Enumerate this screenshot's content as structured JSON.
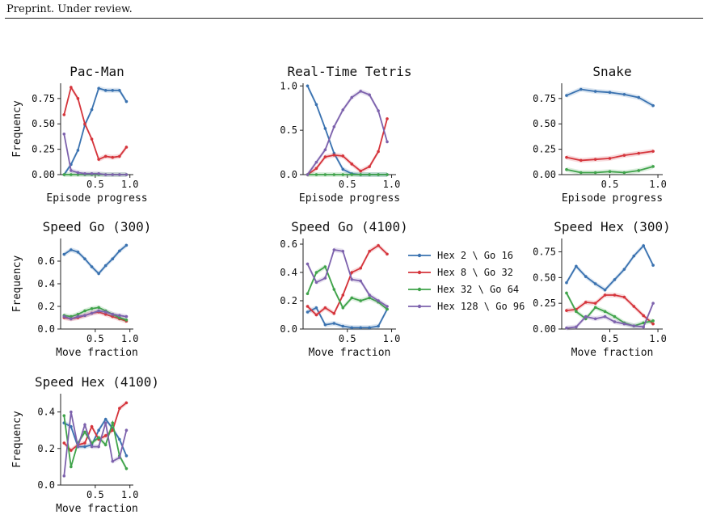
{
  "header": {
    "text": "Preprint. Under review."
  },
  "colors": {
    "blue": "#3a72b0",
    "red": "#d5343b",
    "green": "#3fa34a",
    "purple": "#7d62ad"
  },
  "legend": {
    "placement": "right-of-center-panel",
    "entries": [
      {
        "label": "Hex 2 \\ Go 16",
        "color": "#3a72b0"
      },
      {
        "label": "Hex 8 \\ Go 32",
        "color": "#d5343b"
      },
      {
        "label": "Hex 32 \\ Go 64",
        "color": "#3fa34a"
      },
      {
        "label": "Hex 128 \\ Go 96",
        "color": "#7d62ad"
      }
    ]
  },
  "chart_data": [
    {
      "type": "line",
      "title": "Pac-Man",
      "xlabel": "Episode progress",
      "ylabel": "Frequency",
      "xlim": [
        0,
        1.05
      ],
      "ylim": [
        0,
        0.9
      ],
      "xticks": [
        0.5,
        1.0
      ],
      "xtick_labels": [
        "0.5",
        "1.0"
      ],
      "yticks": [
        0,
        0.25,
        0.5,
        0.75
      ],
      "ytick_labels": [
        "0.00",
        "0.25",
        "0.50",
        "0.75"
      ],
      "series": [
        {
          "color": "#3a72b0",
          "x": [
            0.05,
            0.15,
            0.25,
            0.35,
            0.45,
            0.55,
            0.65,
            0.75,
            0.85,
            0.95
          ],
          "y": [
            0.0,
            0.1,
            0.24,
            0.49,
            0.64,
            0.85,
            0.83,
            0.83,
            0.83,
            0.72
          ]
        },
        {
          "color": "#d5343b",
          "x": [
            0.05,
            0.15,
            0.25,
            0.35,
            0.45,
            0.55,
            0.65,
            0.75,
            0.85,
            0.95
          ],
          "y": [
            0.59,
            0.86,
            0.75,
            0.5,
            0.35,
            0.15,
            0.18,
            0.17,
            0.18,
            0.27
          ]
        },
        {
          "color": "#3fa34a",
          "x": [
            0.05,
            0.15,
            0.25,
            0.35,
            0.45,
            0.55,
            0.65,
            0.75,
            0.85,
            0.95
          ],
          "y": [
            0.0,
            0.0,
            0.0,
            0.0,
            0.0,
            0.0,
            0.0,
            0.0,
            0.0,
            0.0
          ]
        },
        {
          "color": "#7d62ad",
          "x": [
            0.05,
            0.15,
            0.25,
            0.35,
            0.45,
            0.55,
            0.65,
            0.75,
            0.85,
            0.95
          ],
          "y": [
            0.4,
            0.04,
            0.02,
            0.01,
            0.01,
            0.01,
            0.0,
            0.0,
            0.0,
            0.0
          ]
        }
      ]
    },
    {
      "type": "line",
      "title": "Real-Time Tetris",
      "xlabel": "Episode progress",
      "ylabel": "",
      "xlim": [
        0,
        1.05
      ],
      "ylim": [
        0,
        1.03
      ],
      "xticks": [
        0.5,
        1.0
      ],
      "xtick_labels": [
        "0.5",
        "1.0"
      ],
      "yticks": [
        0,
        0.5,
        1.0
      ],
      "ytick_labels": [
        "0.0",
        "0.5",
        "1.0"
      ],
      "series": [
        {
          "color": "#3a72b0",
          "x": [
            0.05,
            0.15,
            0.25,
            0.35,
            0.45,
            0.55,
            0.65,
            0.75,
            0.85,
            0.95
          ],
          "y": [
            1.0,
            0.79,
            0.52,
            0.24,
            0.06,
            0.01,
            0.0,
            0.0,
            0.0,
            0.0
          ]
        },
        {
          "color": "#d5343b",
          "x": [
            0.05,
            0.15,
            0.25,
            0.35,
            0.45,
            0.55,
            0.65,
            0.75,
            0.85,
            0.95
          ],
          "y": [
            0.0,
            0.07,
            0.2,
            0.22,
            0.21,
            0.12,
            0.04,
            0.09,
            0.26,
            0.63
          ]
        },
        {
          "color": "#3fa34a",
          "x": [
            0.05,
            0.15,
            0.25,
            0.35,
            0.45,
            0.55,
            0.65,
            0.75,
            0.85,
            0.95
          ],
          "y": [
            0.0,
            0.0,
            0.0,
            0.0,
            0.0,
            0.0,
            0.0,
            0.0,
            0.0,
            0.0
          ]
        },
        {
          "color": "#7d62ad",
          "x": [
            0.05,
            0.15,
            0.25,
            0.35,
            0.45,
            0.55,
            0.65,
            0.75,
            0.85,
            0.95
          ],
          "y": [
            0.0,
            0.14,
            0.28,
            0.54,
            0.73,
            0.87,
            0.94,
            0.9,
            0.72,
            0.37
          ]
        }
      ]
    },
    {
      "type": "line",
      "title": "Snake",
      "xlabel": "Episode progress",
      "ylabel": "",
      "xlim": [
        0,
        1.05
      ],
      "ylim": [
        0,
        0.9
      ],
      "xticks": [
        0.5,
        1.0
      ],
      "xtick_labels": [
        "0.5",
        "1.0"
      ],
      "yticks": [
        0,
        0.25,
        0.5,
        0.75
      ],
      "ytick_labels": [
        "0.00",
        "0.25",
        "0.50",
        "0.75"
      ],
      "series": [
        {
          "color": "#3a72b0",
          "x": [
            0.05,
            0.2,
            0.35,
            0.5,
            0.65,
            0.8,
            0.95
          ],
          "y": [
            0.78,
            0.84,
            0.82,
            0.81,
            0.79,
            0.76,
            0.68
          ]
        },
        {
          "color": "#d5343b",
          "x": [
            0.05,
            0.2,
            0.35,
            0.5,
            0.65,
            0.8,
            0.95
          ],
          "y": [
            0.17,
            0.14,
            0.15,
            0.16,
            0.19,
            0.21,
            0.23
          ]
        },
        {
          "color": "#3fa34a",
          "x": [
            0.05,
            0.2,
            0.35,
            0.5,
            0.65,
            0.8,
            0.95
          ],
          "y": [
            0.05,
            0.02,
            0.02,
            0.03,
            0.02,
            0.04,
            0.08
          ]
        }
      ]
    },
    {
      "type": "line",
      "title": "Speed Go (300)",
      "xlabel": "Move fraction",
      "ylabel": "Frequency",
      "xlim": [
        0,
        1.05
      ],
      "ylim": [
        0,
        0.8
      ],
      "xticks": [
        0.5,
        1.0
      ],
      "xtick_labels": [
        "0.5",
        "1.0"
      ],
      "yticks": [
        0,
        0.2,
        0.4,
        0.6
      ],
      "ytick_labels": [
        "0.0",
        "0.2",
        "0.4",
        "0.6"
      ],
      "series": [
        {
          "color": "#3a72b0",
          "x": [
            0.05,
            0.15,
            0.25,
            0.35,
            0.45,
            0.55,
            0.65,
            0.75,
            0.85,
            0.95
          ],
          "y": [
            0.66,
            0.7,
            0.68,
            0.62,
            0.55,
            0.49,
            0.56,
            0.62,
            0.69,
            0.74
          ]
        },
        {
          "color": "#d5343b",
          "x": [
            0.05,
            0.15,
            0.25,
            0.35,
            0.45,
            0.55,
            0.65,
            0.75,
            0.85,
            0.95
          ],
          "y": [
            0.1,
            0.09,
            0.1,
            0.12,
            0.14,
            0.15,
            0.13,
            0.11,
            0.09,
            0.07
          ]
        },
        {
          "color": "#3fa34a",
          "x": [
            0.05,
            0.15,
            0.25,
            0.35,
            0.45,
            0.55,
            0.65,
            0.75,
            0.85,
            0.95
          ],
          "y": [
            0.12,
            0.11,
            0.13,
            0.16,
            0.18,
            0.19,
            0.16,
            0.13,
            0.1,
            0.08
          ]
        },
        {
          "color": "#7d62ad",
          "x": [
            0.05,
            0.15,
            0.25,
            0.35,
            0.45,
            0.55,
            0.65,
            0.75,
            0.85,
            0.95
          ],
          "y": [
            0.11,
            0.09,
            0.11,
            0.12,
            0.14,
            0.16,
            0.15,
            0.13,
            0.12,
            0.11
          ]
        }
      ]
    },
    {
      "type": "line",
      "title": "Speed Go (4100)",
      "xlabel": "Move fraction",
      "ylabel": "",
      "xlim": [
        0,
        1.05
      ],
      "ylim": [
        0,
        0.64
      ],
      "xticks": [
        0.5,
        1.0
      ],
      "xtick_labels": [
        "0.5",
        "1.0"
      ],
      "yticks": [
        0,
        0.2,
        0.4,
        0.6
      ],
      "ytick_labels": [
        "0.0",
        "0.2",
        "0.4",
        "0.6"
      ],
      "series": [
        {
          "color": "#3a72b0",
          "x": [
            0.05,
            0.15,
            0.25,
            0.35,
            0.45,
            0.55,
            0.65,
            0.75,
            0.85,
            0.95
          ],
          "y": [
            0.12,
            0.15,
            0.03,
            0.04,
            0.02,
            0.01,
            0.01,
            0.01,
            0.02,
            0.14
          ]
        },
        {
          "color": "#d5343b",
          "x": [
            0.05,
            0.15,
            0.25,
            0.35,
            0.45,
            0.55,
            0.65,
            0.75,
            0.85,
            0.95
          ],
          "y": [
            0.16,
            0.1,
            0.15,
            0.11,
            0.24,
            0.4,
            0.43,
            0.55,
            0.59,
            0.53
          ]
        },
        {
          "color": "#3fa34a",
          "x": [
            0.05,
            0.15,
            0.25,
            0.35,
            0.45,
            0.55,
            0.65,
            0.75,
            0.85,
            0.95
          ],
          "y": [
            0.25,
            0.4,
            0.44,
            0.28,
            0.15,
            0.22,
            0.2,
            0.22,
            0.19,
            0.14
          ]
        },
        {
          "color": "#7d62ad",
          "x": [
            0.05,
            0.15,
            0.25,
            0.35,
            0.45,
            0.55,
            0.65,
            0.75,
            0.85,
            0.95
          ],
          "y": [
            0.46,
            0.33,
            0.36,
            0.56,
            0.55,
            0.35,
            0.34,
            0.24,
            0.2,
            0.16
          ]
        }
      ]
    },
    {
      "type": "line",
      "title": "Speed Hex (300)",
      "xlabel": "Move fraction",
      "ylabel": "",
      "xlim": [
        0,
        1.05
      ],
      "ylim": [
        0,
        0.88
      ],
      "xticks": [
        0.5,
        1.0
      ],
      "xtick_labels": [
        "0.5",
        "1.0"
      ],
      "yticks": [
        0,
        0.25,
        0.5,
        0.75
      ],
      "ytick_labels": [
        "0.00",
        "0.25",
        "0.50",
        "0.75"
      ],
      "series": [
        {
          "color": "#3a72b0",
          "x": [
            0.05,
            0.15,
            0.25,
            0.35,
            0.45,
            0.55,
            0.65,
            0.75,
            0.85,
            0.95
          ],
          "y": [
            0.45,
            0.61,
            0.51,
            0.44,
            0.38,
            0.48,
            0.58,
            0.71,
            0.81,
            0.62
          ]
        },
        {
          "color": "#d5343b",
          "x": [
            0.05,
            0.15,
            0.25,
            0.35,
            0.45,
            0.55,
            0.65,
            0.75,
            0.85,
            0.95
          ],
          "y": [
            0.18,
            0.19,
            0.26,
            0.25,
            0.33,
            0.33,
            0.31,
            0.22,
            0.13,
            0.05
          ]
        },
        {
          "color": "#3fa34a",
          "x": [
            0.05,
            0.15,
            0.25,
            0.35,
            0.45,
            0.55,
            0.65,
            0.75,
            0.85,
            0.95
          ],
          "y": [
            0.35,
            0.17,
            0.1,
            0.21,
            0.17,
            0.12,
            0.06,
            0.03,
            0.06,
            0.08
          ]
        },
        {
          "color": "#7d62ad",
          "x": [
            0.05,
            0.15,
            0.25,
            0.35,
            0.45,
            0.55,
            0.65,
            0.75,
            0.85,
            0.95
          ],
          "y": [
            0.01,
            0.02,
            0.12,
            0.1,
            0.12,
            0.07,
            0.05,
            0.03,
            0.02,
            0.25
          ]
        }
      ]
    },
    {
      "type": "line",
      "title": "Speed Hex (4100)",
      "xlabel": "Move fraction",
      "ylabel": "Frequency",
      "xlim": [
        0,
        1.05
      ],
      "ylim": [
        0,
        0.5
      ],
      "xticks": [
        0.5,
        1.0
      ],
      "xtick_labels": [
        "0.5",
        "1.0"
      ],
      "yticks": [
        0,
        0.2,
        0.4
      ],
      "ytick_labels": [
        "0.0",
        "0.2",
        "0.4"
      ],
      "series": [
        {
          "color": "#3a72b0",
          "x": [
            0.05,
            0.15,
            0.25,
            0.35,
            0.45,
            0.55,
            0.65,
            0.75,
            0.85,
            0.95
          ],
          "y": [
            0.34,
            0.32,
            0.21,
            0.21,
            0.22,
            0.3,
            0.36,
            0.31,
            0.25,
            0.16
          ]
        },
        {
          "color": "#d5343b",
          "x": [
            0.05,
            0.15,
            0.25,
            0.35,
            0.45,
            0.55,
            0.65,
            0.75,
            0.85,
            0.95
          ],
          "y": [
            0.23,
            0.19,
            0.22,
            0.23,
            0.32,
            0.25,
            0.27,
            0.3,
            0.42,
            0.45
          ]
        },
        {
          "color": "#3fa34a",
          "x": [
            0.05,
            0.15,
            0.25,
            0.35,
            0.45,
            0.55,
            0.65,
            0.75,
            0.85,
            0.95
          ],
          "y": [
            0.38,
            0.1,
            0.23,
            0.29,
            0.23,
            0.26,
            0.22,
            0.34,
            0.16,
            0.09
          ]
        },
        {
          "color": "#7d62ad",
          "x": [
            0.05,
            0.15,
            0.25,
            0.35,
            0.45,
            0.55,
            0.65,
            0.75,
            0.85,
            0.95
          ],
          "y": [
            0.05,
            0.4,
            0.21,
            0.33,
            0.21,
            0.21,
            0.34,
            0.13,
            0.15,
            0.3
          ]
        }
      ]
    }
  ]
}
